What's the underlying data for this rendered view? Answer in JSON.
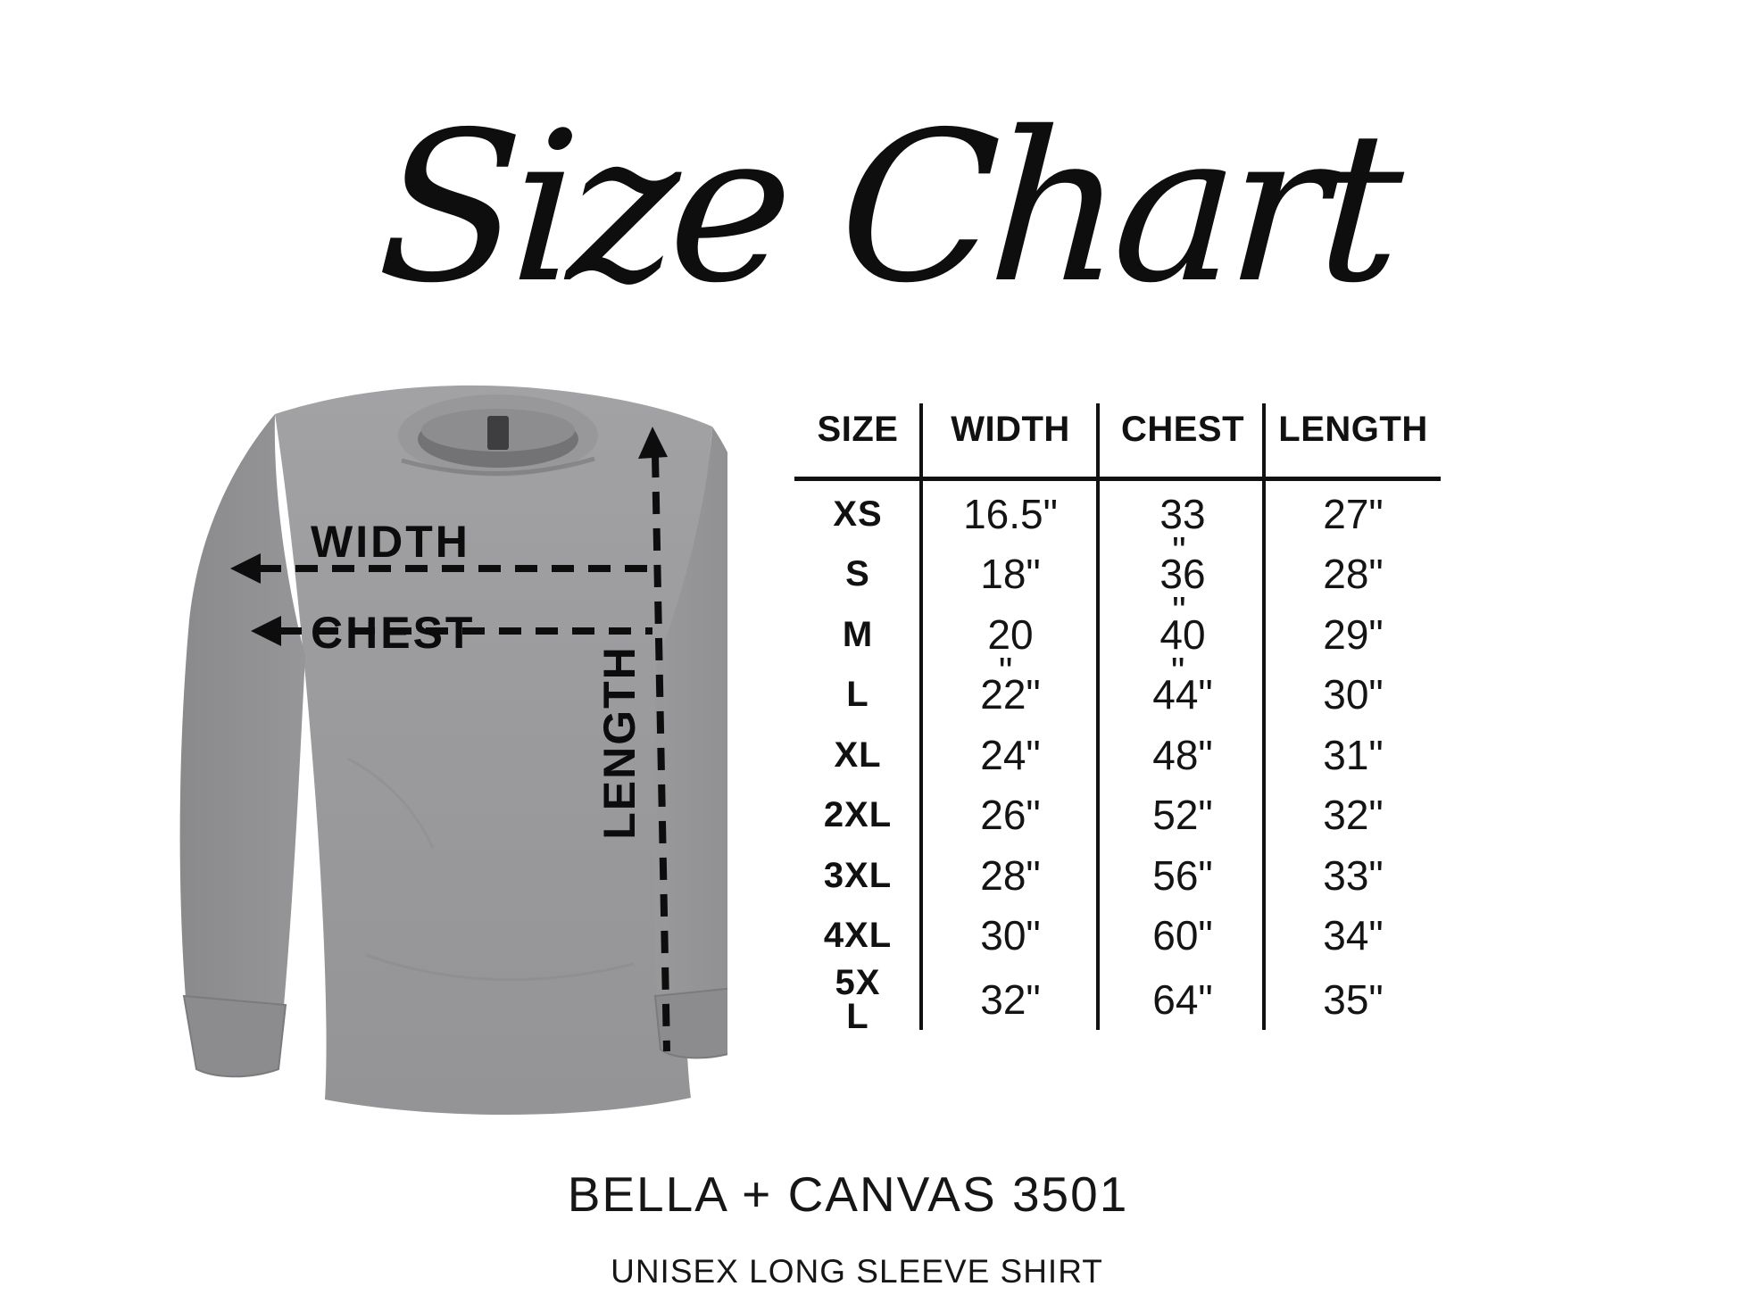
{
  "title": {
    "text": "Size Chart"
  },
  "shirt": {
    "description": "heather gray unisex long sleeve shirt",
    "labels": {
      "width": "WIDTH",
      "chest": "CHEST",
      "length": "LENGTH"
    },
    "colors": {
      "body": "#9b9b9d",
      "body_light": "#a4a4a6",
      "sleeve": "#929294",
      "sleeve_dark": "#8a8a8c",
      "cuff": "#8c8c8e",
      "collar": "#98989a",
      "neck_inner": "#737376",
      "neck_back": "#8d8d8f",
      "tag": "#3e3e40",
      "annotation": "#0d0d0d"
    }
  },
  "table": {
    "headers": [
      "SIZE",
      "WIDTH",
      "CHEST",
      "LENGTH"
    ],
    "rows": [
      {
        "size_lines": [
          "XS"
        ],
        "cells": [
          {
            "text": "16.5\""
          },
          {
            "text": "33"
          },
          {
            "text": "27\""
          }
        ]
      },
      {
        "size_lines": [
          "S"
        ],
        "cells": [
          {
            "text": "18\""
          },
          {
            "text": "36",
            "mark_above": true
          },
          {
            "text": "28\""
          }
        ]
      },
      {
        "size_lines": [
          "M"
        ],
        "cells": [
          {
            "text": "20"
          },
          {
            "text": "40",
            "mark_above": true
          },
          {
            "text": "29\""
          }
        ]
      },
      {
        "size_lines": [
          "L"
        ],
        "cells": [
          {
            "text": "22\"",
            "mark_above": true
          },
          {
            "text": "44\"",
            "mark_above": true
          },
          {
            "text": "30\""
          }
        ]
      },
      {
        "size_lines": [
          "XL"
        ],
        "cells": [
          {
            "text": "24\""
          },
          {
            "text": "48\""
          },
          {
            "text": "31\""
          }
        ]
      },
      {
        "size_lines": [
          "2XL"
        ],
        "cells": [
          {
            "text": "26\""
          },
          {
            "text": "52\""
          },
          {
            "text": "32\""
          }
        ]
      },
      {
        "size_lines": [
          "3XL"
        ],
        "cells": [
          {
            "text": "28\""
          },
          {
            "text": "56\""
          },
          {
            "text": "33\""
          }
        ]
      },
      {
        "size_lines": [
          "4XL"
        ],
        "cells": [
          {
            "text": "30\""
          },
          {
            "text": "60\""
          },
          {
            "text": "34\""
          }
        ]
      },
      {
        "size_lines": [
          "5X",
          "L"
        ],
        "cells": [
          {
            "text": "32\""
          },
          {
            "text": "64\""
          },
          {
            "text": "35\""
          }
        ]
      }
    ]
  },
  "footer": {
    "product": "BELLA + CANVAS 3501",
    "subtitle": "UNISEX LONG SLEEVE SHIRT"
  },
  "chart_data": {
    "type": "table",
    "title": "Size Chart",
    "columns": [
      "SIZE",
      "WIDTH",
      "CHEST",
      "LENGTH"
    ],
    "units": "inches",
    "rows": [
      [
        "XS",
        "16.5",
        "33",
        "27"
      ],
      [
        "S",
        "18",
        "36",
        "28"
      ],
      [
        "M",
        "20",
        "40",
        "29"
      ],
      [
        "L",
        "22",
        "44",
        "30"
      ],
      [
        "XL",
        "24",
        "48",
        "31"
      ],
      [
        "2XL",
        "26",
        "52",
        "32"
      ],
      [
        "3XL",
        "28",
        "56",
        "33"
      ],
      [
        "4XL",
        "30",
        "60",
        "34"
      ],
      [
        "5XL",
        "32",
        "64",
        "35"
      ]
    ],
    "product": "BELLA + CANVAS 3501",
    "product_subtitle": "UNISEX LONG SLEEVE SHIRT"
  }
}
